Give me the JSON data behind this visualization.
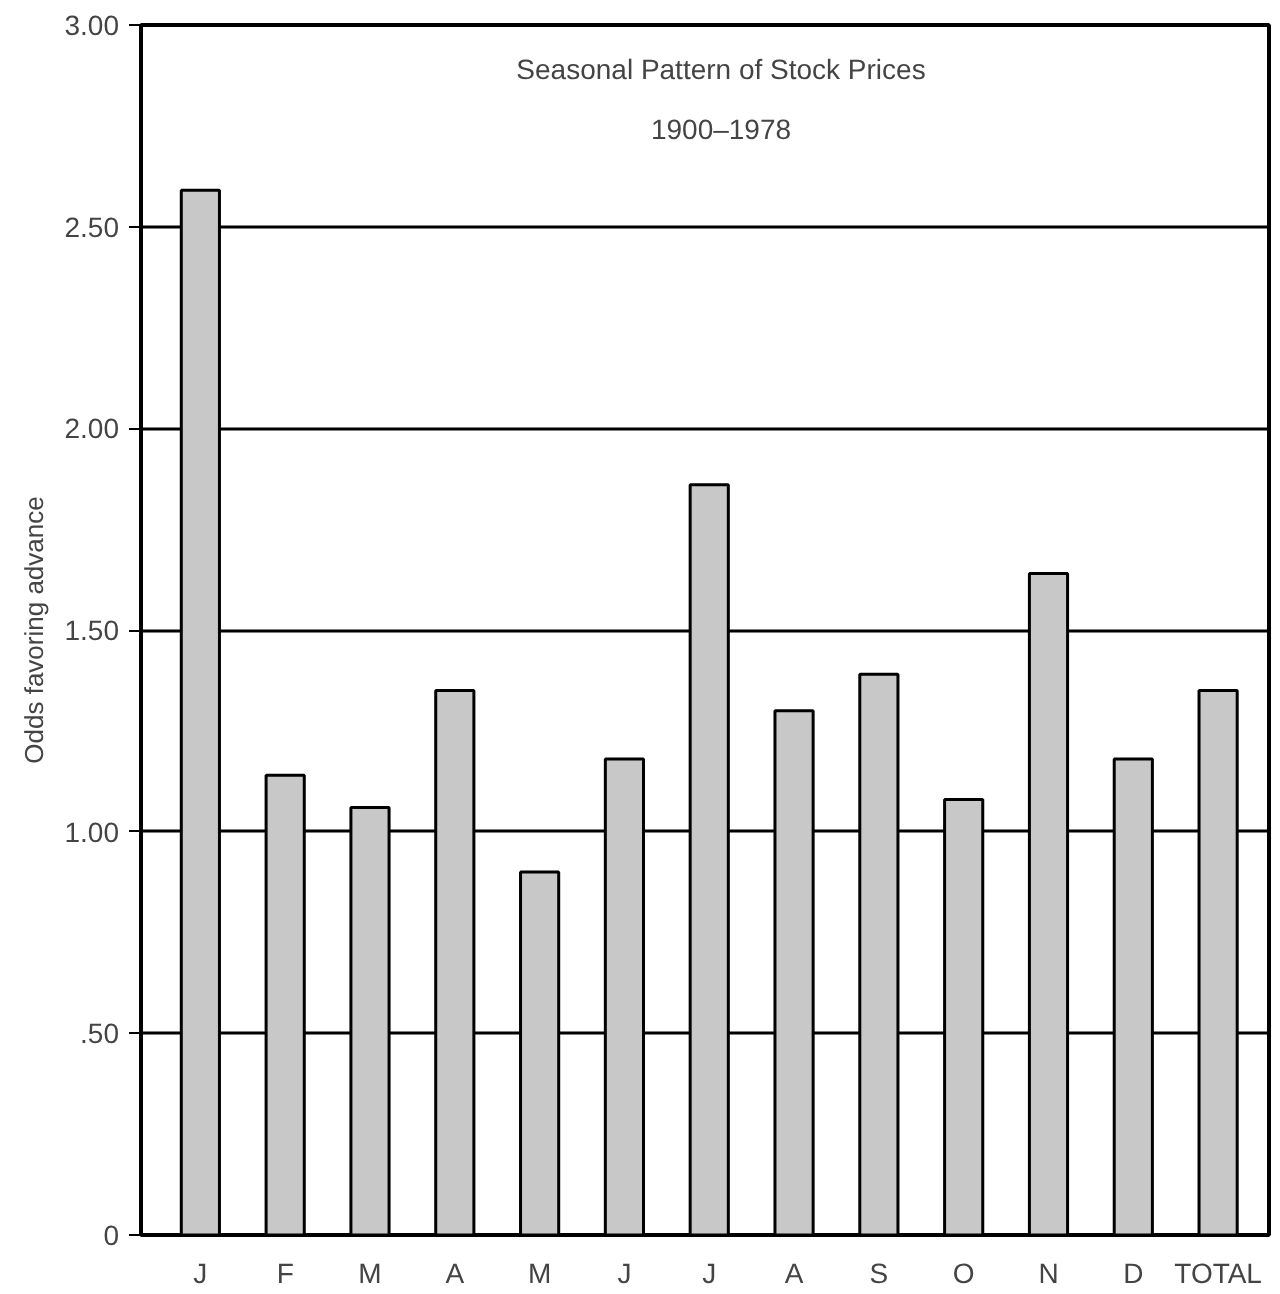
{
  "chart_data": {
    "type": "bar",
    "title": "Seasonal Pattern of Stock Prices",
    "subtitle": "1900–1978",
    "ylabel": "Odds favoring advance",
    "categories": [
      "J",
      "F",
      "M",
      "A",
      "M",
      "J",
      "J",
      "A",
      "S",
      "O",
      "N",
      "D",
      "TOTAL"
    ],
    "values": [
      2.59,
      1.14,
      1.06,
      1.35,
      0.9,
      1.18,
      1.86,
      1.3,
      1.39,
      1.08,
      1.64,
      1.18,
      1.35
    ],
    "color": "#c8c8c8",
    "ylim": [
      0,
      3
    ],
    "yticks": [
      0,
      {
        "value": 0.5,
        "label": ".50"
      },
      {
        "value": 1,
        "label": "1.00"
      },
      {
        "value": 1.5,
        "label": "1.50"
      },
      {
        "value": 2,
        "label": "2.00"
      },
      {
        "value": 2.5,
        "label": "2.50"
      },
      {
        "value": 3,
        "label": "3.00"
      }
    ],
    "grid": "y"
  }
}
